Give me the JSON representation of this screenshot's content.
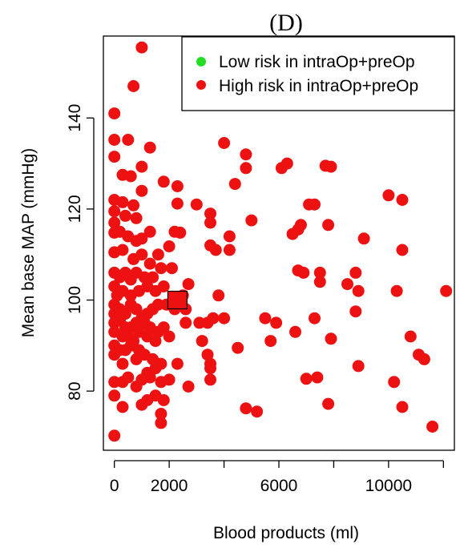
{
  "chart_data": {
    "type": "scatter",
    "title": "(D)",
    "xlabel": "Blood products (ml)",
    "ylabel": "Mean base MAP (mmHg)",
    "xlim": [
      -400,
      12400
    ],
    "ylim": [
      67,
      158
    ],
    "x_ticks": [
      0,
      2000,
      6000,
      10000
    ],
    "x_tick_marks": [
      0,
      2000,
      4000,
      6000,
      8000,
      10000,
      12000
    ],
    "y_ticks": [
      80,
      100,
      120,
      140
    ],
    "legend": {
      "position": "top-right",
      "entries": [
        {
          "label": "Low risk in intraOp+preOp",
          "color": "#22dd22"
        },
        {
          "label": "High risk in intraOp+preOp",
          "color": "#ee1111"
        }
      ]
    },
    "highlight": {
      "marker": "square",
      "x": 2300,
      "y": 100,
      "color": "#ee1111"
    },
    "series": [
      {
        "name": "High risk in intraOp+preOp",
        "color": "#ee1111",
        "points": [
          [
            1000,
            155.5
          ],
          [
            700,
            147
          ],
          [
            0,
            141
          ],
          [
            0,
            135.2
          ],
          [
            0,
            131.5
          ],
          [
            500,
            135.2
          ],
          [
            1300,
            133.5
          ],
          [
            300,
            127.5
          ],
          [
            600,
            127.2
          ],
          [
            1000,
            129.3
          ],
          [
            1800,
            126
          ],
          [
            2300,
            125
          ],
          [
            0,
            122
          ],
          [
            0,
            119.5
          ],
          [
            0,
            117
          ],
          [
            300,
            121.5
          ],
          [
            700,
            120.8
          ],
          [
            1000,
            124
          ],
          [
            2300,
            121.2
          ],
          [
            400,
            118.5
          ],
          [
            800,
            118
          ],
          [
            0,
            114.8
          ],
          [
            200,
            115
          ],
          [
            500,
            114
          ],
          [
            800,
            113
          ],
          [
            1000,
            113.5
          ],
          [
            1300,
            115
          ],
          [
            2400,
            114.8
          ],
          [
            2200,
            115
          ],
          [
            0,
            110.5
          ],
          [
            300,
            111
          ],
          [
            700,
            109
          ],
          [
            1000,
            110
          ],
          [
            1300,
            108
          ],
          [
            1600,
            110
          ],
          [
            2000,
            111.8
          ],
          [
            0,
            106
          ],
          [
            200,
            105
          ],
          [
            400,
            106
          ],
          [
            600,
            104.5
          ],
          [
            800,
            106
          ],
          [
            1100,
            105
          ],
          [
            1400,
            105
          ],
          [
            1700,
            107
          ],
          [
            2100,
            107
          ],
          [
            2700,
            103.5
          ],
          [
            0,
            103
          ],
          [
            100,
            101
          ],
          [
            300,
            102
          ],
          [
            600,
            101
          ],
          [
            900,
            102
          ],
          [
            1200,
            103
          ],
          [
            1500,
            102
          ],
          [
            1800,
            103
          ],
          [
            2500,
            101
          ],
          [
            0,
            99
          ],
          [
            0,
            97
          ],
          [
            200,
            98
          ],
          [
            400,
            97
          ],
          [
            600,
            99
          ],
          [
            800,
            98
          ],
          [
            1000,
            96
          ],
          [
            1200,
            97
          ],
          [
            1400,
            98
          ],
          [
            1600,
            99
          ],
          [
            1900,
            99
          ],
          [
            2200,
            98
          ],
          [
            2600,
            98
          ],
          [
            0,
            95
          ],
          [
            200,
            95.5
          ],
          [
            400,
            94
          ],
          [
            600,
            94
          ],
          [
            800,
            95
          ],
          [
            1100,
            95
          ],
          [
            1300,
            94
          ],
          [
            1600,
            93
          ],
          [
            1800,
            94
          ],
          [
            0,
            93
          ],
          [
            300,
            92
          ],
          [
            500,
            92
          ],
          [
            700,
            91
          ],
          [
            900,
            93
          ],
          [
            1200,
            92
          ],
          [
            1500,
            91
          ],
          [
            2000,
            92
          ],
          [
            2600,
            95
          ],
          [
            0,
            90
          ],
          [
            200,
            89
          ],
          [
            400,
            89
          ],
          [
            600,
            90
          ],
          [
            900,
            89
          ],
          [
            1100,
            88
          ],
          [
            1400,
            87
          ],
          [
            1700,
            86
          ],
          [
            2300,
            86
          ],
          [
            0,
            88
          ],
          [
            300,
            86
          ],
          [
            800,
            87
          ],
          [
            1200,
            84
          ],
          [
            1500,
            85
          ],
          [
            0,
            82
          ],
          [
            300,
            82
          ],
          [
            500,
            83
          ],
          [
            800,
            81
          ],
          [
            1000,
            82.5
          ],
          [
            1300,
            83
          ],
          [
            1700,
            82
          ],
          [
            2000,
            82.5
          ],
          [
            2700,
            81
          ],
          [
            1500,
            79
          ],
          [
            1800,
            78
          ],
          [
            0,
            79
          ],
          [
            1200,
            78
          ],
          [
            1000,
            77
          ],
          [
            300,
            76.5
          ],
          [
            1700,
            75
          ],
          [
            1700,
            73
          ],
          [
            0,
            70.2
          ],
          [
            3000,
            121
          ],
          [
            3500,
            119
          ],
          [
            3500,
            117
          ],
          [
            4000,
            134.5
          ],
          [
            4800,
            132
          ],
          [
            4800,
            129
          ],
          [
            4400,
            125.5
          ],
          [
            3500,
            112
          ],
          [
            3700,
            111
          ],
          [
            4200,
            111
          ],
          [
            4200,
            114
          ],
          [
            5000,
            117.5
          ],
          [
            3800,
            101
          ],
          [
            3600,
            96
          ],
          [
            3100,
            95
          ],
          [
            3400,
            95
          ],
          [
            4000,
            96
          ],
          [
            3200,
            91
          ],
          [
            3400,
            88
          ],
          [
            3500,
            86
          ],
          [
            3500,
            85
          ],
          [
            3500,
            82.5
          ],
          [
            4500,
            89.5
          ],
          [
            5500,
            96
          ],
          [
            5700,
            91
          ],
          [
            5900,
            95
          ],
          [
            6100,
            129
          ],
          [
            6300,
            130
          ],
          [
            6500,
            114.5
          ],
          [
            6700,
            115.5
          ],
          [
            6800,
            116.5
          ],
          [
            7100,
            121
          ],
          [
            7300,
            121
          ],
          [
            7700,
            129.5
          ],
          [
            7900,
            129.3
          ],
          [
            7800,
            116.5
          ],
          [
            6700,
            106.5
          ],
          [
            6900,
            106
          ],
          [
            7500,
            106
          ],
          [
            7500,
            104
          ],
          [
            7300,
            96
          ],
          [
            7000,
            82.7
          ],
          [
            7400,
            83
          ],
          [
            7900,
            91.5
          ],
          [
            7800,
            77.2
          ],
          [
            6600,
            93
          ],
          [
            4800,
            76.2
          ],
          [
            5200,
            75.5
          ],
          [
            8500,
            103.5
          ],
          [
            8800,
            106
          ],
          [
            8900,
            102
          ],
          [
            8800,
            97.5
          ],
          [
            9100,
            113.5
          ],
          [
            8900,
            85.5
          ],
          [
            10000,
            123
          ],
          [
            10500,
            122
          ],
          [
            10500,
            111
          ],
          [
            10300,
            102
          ],
          [
            10800,
            92
          ],
          [
            11100,
            88
          ],
          [
            11300,
            87
          ],
          [
            10200,
            82
          ],
          [
            10500,
            76.5
          ],
          [
            11600,
            72.2
          ],
          [
            12100,
            102
          ]
        ]
      }
    ]
  }
}
